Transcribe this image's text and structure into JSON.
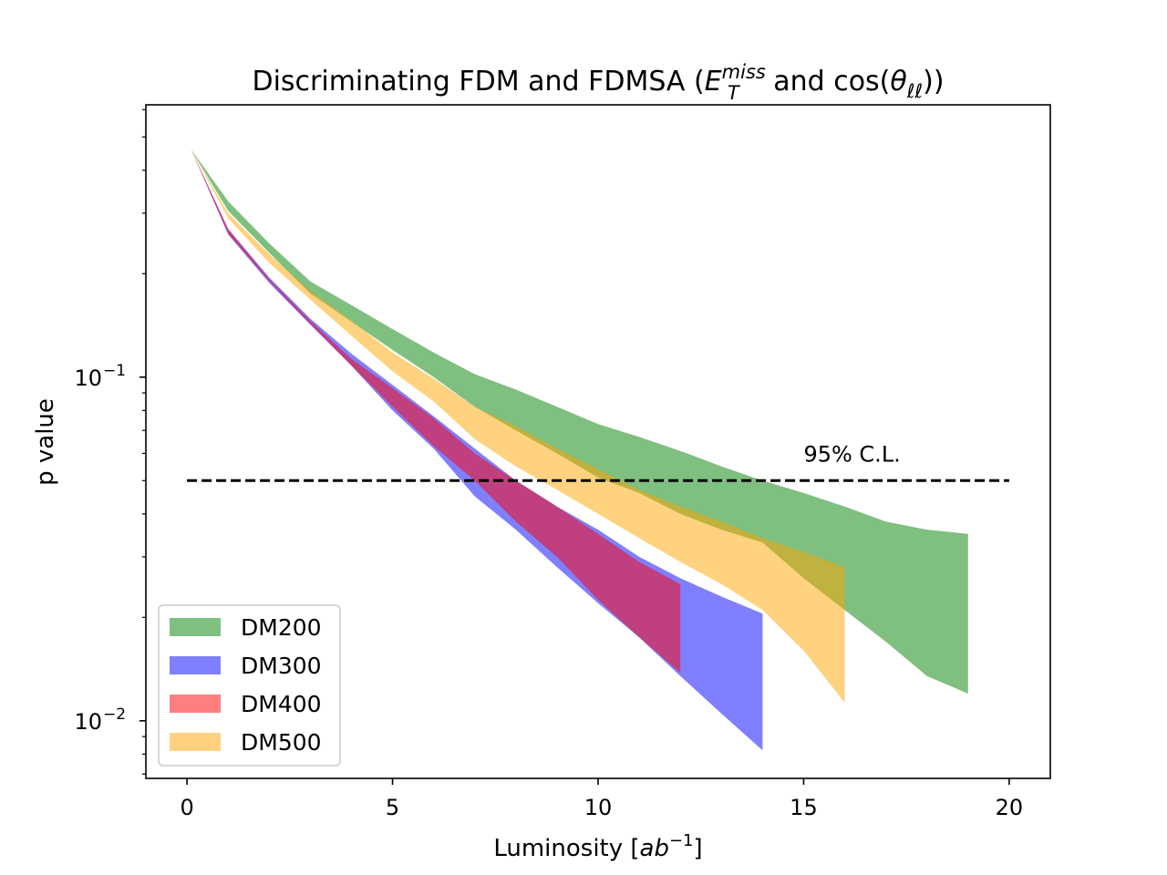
{
  "chart_data": {
    "type": "area",
    "title_prefix": "Discriminating FDM and FDMSA (",
    "title_E": "E",
    "title_sub_T": "T",
    "title_sup_miss": "miss",
    "title_mid": " and cos(",
    "title_theta": "θ",
    "title_sub_ll": "ℓℓ",
    "title_suffix": "))",
    "xlabel_prefix": "Luminosity [",
    "xlabel_unit": "ab",
    "xlabel_exp": "−1",
    "xlabel_suffix": "]",
    "ylabel": "p value",
    "yscale": "log",
    "xlim": [
      -1,
      21
    ],
    "ylim": [
      0.0068,
      0.62
    ],
    "xticks": [
      0,
      5,
      10,
      15,
      20
    ],
    "xtick_labels": [
      "0",
      "5",
      "10",
      "15",
      "20"
    ],
    "ytick_major": [
      {
        "value": 0.1,
        "base": "10",
        "exp": "−1"
      },
      {
        "value": 0.01,
        "base": "10",
        "exp": "−2"
      }
    ],
    "ytick_minor": [
      0.007,
      0.008,
      0.009,
      0.02,
      0.03,
      0.04,
      0.05,
      0.06,
      0.07,
      0.08,
      0.09,
      0.2,
      0.3,
      0.4,
      0.5,
      0.6
    ],
    "threshold": {
      "value": 0.05,
      "x_range": [
        0,
        20
      ],
      "label": "95% C.L.",
      "label_x": 15
    },
    "legend_position": "lower-left",
    "series": [
      {
        "name": "DM200",
        "color": "#008000",
        "x": [
          0.1,
          1,
          2,
          3,
          4,
          5,
          6,
          7,
          8,
          9,
          10,
          11,
          12,
          13,
          14,
          15,
          16,
          17,
          18,
          19
        ],
        "upper": [
          0.46,
          0.325,
          0.245,
          0.19,
          0.162,
          0.138,
          0.118,
          0.102,
          0.092,
          0.082,
          0.073,
          0.067,
          0.061,
          0.055,
          0.05,
          0.046,
          0.042,
          0.038,
          0.036,
          0.035
        ],
        "lower": [
          0.46,
          0.305,
          0.23,
          0.175,
          0.145,
          0.12,
          0.1,
          0.082,
          0.07,
          0.06,
          0.051,
          0.046,
          0.04,
          0.036,
          0.033,
          0.026,
          0.021,
          0.017,
          0.0135,
          0.012
        ]
      },
      {
        "name": "DM300",
        "color": "#0000ff",
        "x": [
          0.1,
          1,
          2,
          3,
          4,
          5,
          6,
          7,
          8,
          9,
          10,
          11,
          12,
          13,
          14
        ],
        "upper": [
          0.46,
          0.27,
          0.195,
          0.148,
          0.117,
          0.095,
          0.077,
          0.062,
          0.05,
          0.042,
          0.036,
          0.03,
          0.026,
          0.023,
          0.0205
        ],
        "lower": [
          0.46,
          0.26,
          0.188,
          0.142,
          0.108,
          0.08,
          0.062,
          0.045,
          0.036,
          0.028,
          0.022,
          0.0175,
          0.0135,
          0.0105,
          0.0082
        ]
      },
      {
        "name": "DM400",
        "color": "#ff0000",
        "x": [
          0.1,
          1,
          2,
          3,
          4,
          5,
          6,
          7,
          8,
          9,
          10,
          11,
          12
        ],
        "upper": [
          0.46,
          0.27,
          0.193,
          0.146,
          0.113,
          0.093,
          0.076,
          0.06,
          0.05,
          0.042,
          0.035,
          0.029,
          0.025
        ],
        "lower": [
          0.46,
          0.262,
          0.19,
          0.143,
          0.108,
          0.082,
          0.063,
          0.05,
          0.038,
          0.03,
          0.0225,
          0.0175,
          0.0138
        ]
      },
      {
        "name": "DM500",
        "color": "#ffa500",
        "x": [
          0.1,
          1,
          2,
          3,
          4,
          5,
          6,
          7,
          8,
          9,
          10,
          11,
          12,
          13,
          14,
          15,
          16
        ],
        "upper": [
          0.46,
          0.3,
          0.228,
          0.178,
          0.146,
          0.118,
          0.099,
          0.082,
          0.072,
          0.062,
          0.054,
          0.047,
          0.042,
          0.038,
          0.034,
          0.031,
          0.028
        ],
        "lower": [
          0.46,
          0.29,
          0.215,
          0.168,
          0.132,
          0.104,
          0.085,
          0.066,
          0.055,
          0.047,
          0.04,
          0.034,
          0.029,
          0.025,
          0.021,
          0.016,
          0.0113
        ]
      }
    ]
  }
}
